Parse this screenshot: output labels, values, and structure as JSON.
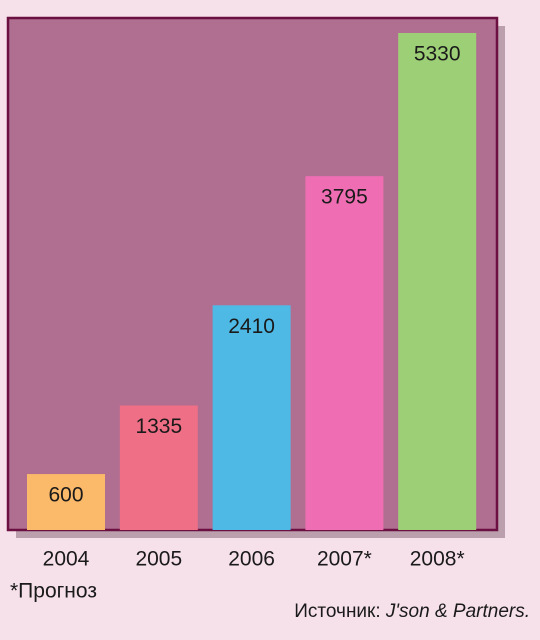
{
  "chart_data": {
    "type": "bar",
    "categories": [
      "2004",
      "2005",
      "2006",
      "2007*",
      "2008*"
    ],
    "values": [
      600,
      1335,
      2410,
      3795,
      5330
    ],
    "colors": [
      "#fbb96a",
      "#ef6f86",
      "#4fb9e6",
      "#ef6db2",
      "#9dd076"
    ],
    "footnote": "*Прогноз",
    "source_label": "Источник:",
    "source_name": "J'son & Partners."
  }
}
